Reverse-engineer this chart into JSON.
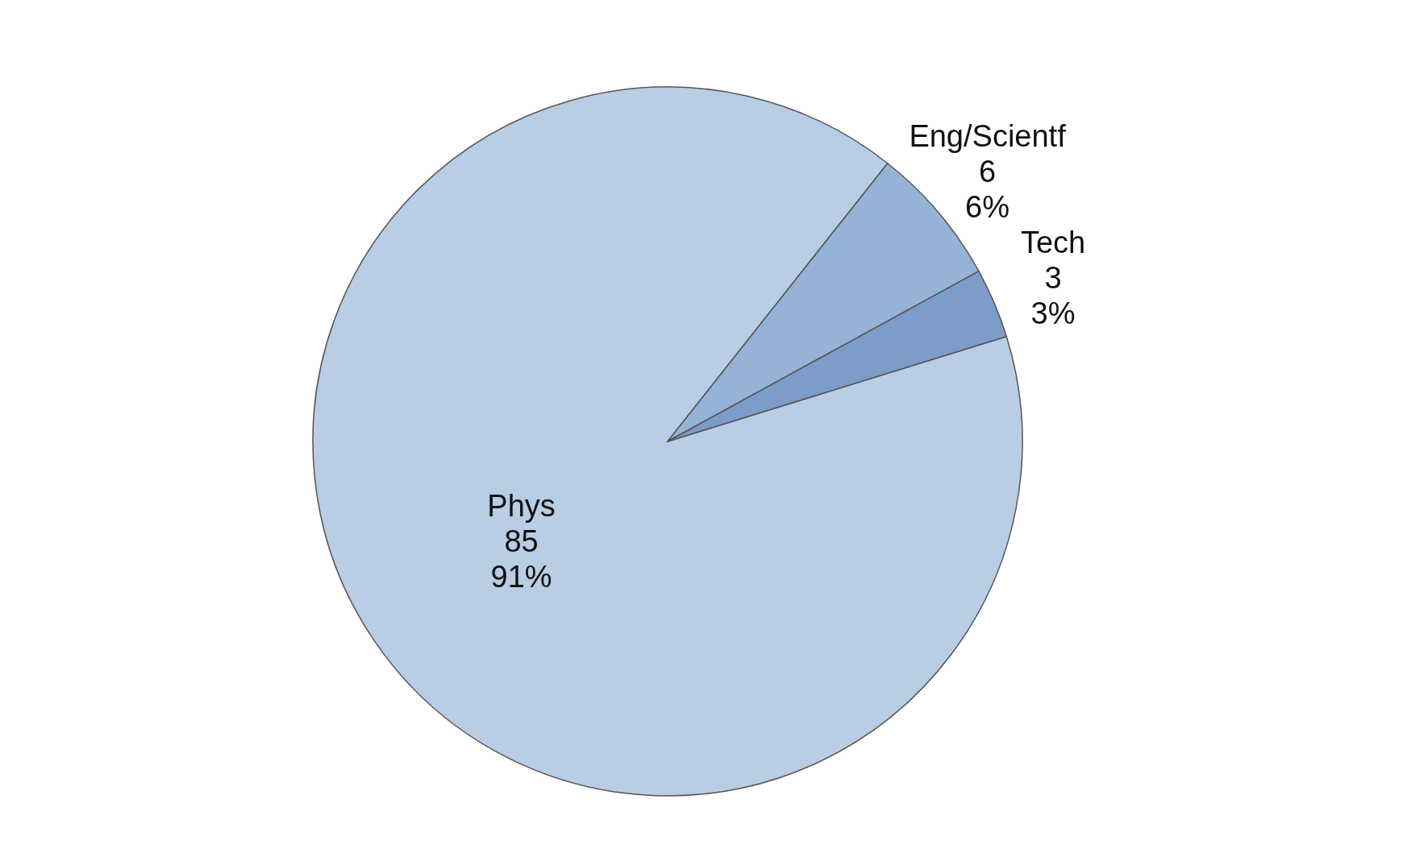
{
  "chart_data": {
    "type": "pie",
    "categories": [
      "Phys",
      "Eng/Scientf",
      "Tech"
    ],
    "values": [
      85,
      6,
      3
    ],
    "colors": [
      "#b9cde4",
      "#95b3d7",
      "#7c9cc9"
    ],
    "value_labels": [
      "85\n91%",
      "6\n6%",
      "3\n3%"
    ]
  }
}
